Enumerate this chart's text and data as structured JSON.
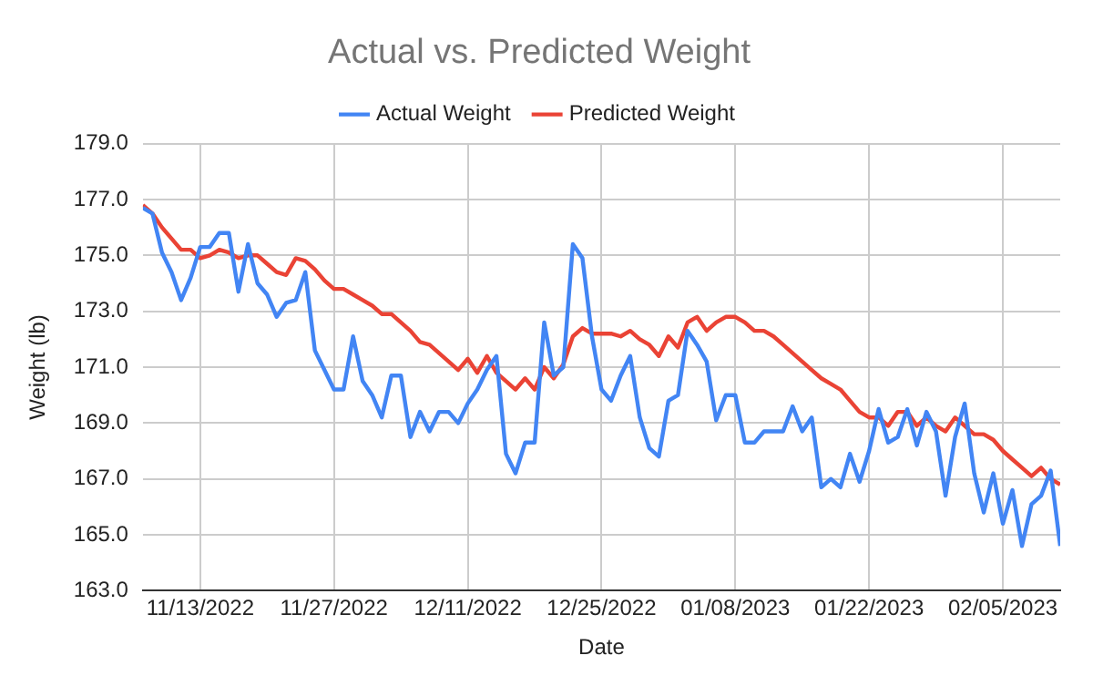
{
  "chart_data": {
    "type": "line",
    "title": "Actual vs. Predicted Weight",
    "xlabel": "Date",
    "ylabel": "Weight (lb)",
    "x": [
      "2022-11-07",
      "2022-11-08",
      "2022-11-09",
      "2022-11-10",
      "2022-11-11",
      "2022-11-12",
      "2022-11-13",
      "2022-11-14",
      "2022-11-15",
      "2022-11-16",
      "2022-11-17",
      "2022-11-18",
      "2022-11-19",
      "2022-11-20",
      "2022-11-21",
      "2022-11-22",
      "2022-11-23",
      "2022-11-24",
      "2022-11-25",
      "2022-11-26",
      "2022-11-27",
      "2022-11-28",
      "2022-11-29",
      "2022-11-30",
      "2022-12-01",
      "2022-12-02",
      "2022-12-03",
      "2022-12-04",
      "2022-12-05",
      "2022-12-06",
      "2022-12-07",
      "2022-12-08",
      "2022-12-09",
      "2022-12-10",
      "2022-12-11",
      "2022-12-12",
      "2022-12-13",
      "2022-12-14",
      "2022-12-15",
      "2022-12-16",
      "2022-12-17",
      "2022-12-18",
      "2022-12-19",
      "2022-12-20",
      "2022-12-21",
      "2022-12-22",
      "2022-12-23",
      "2022-12-24",
      "2022-12-25",
      "2022-12-26",
      "2022-12-27",
      "2022-12-28",
      "2022-12-29",
      "2022-12-30",
      "2022-12-31",
      "2023-01-01",
      "2023-01-02",
      "2023-01-03",
      "2023-01-04",
      "2023-01-05",
      "2023-01-06",
      "2023-01-07",
      "2023-01-08",
      "2023-01-09",
      "2023-01-10",
      "2023-01-11",
      "2023-01-12",
      "2023-01-13",
      "2023-01-14",
      "2023-01-15",
      "2023-01-16",
      "2023-01-17",
      "2023-01-18",
      "2023-01-19",
      "2023-01-20",
      "2023-01-21",
      "2023-01-22",
      "2023-01-23",
      "2023-01-24",
      "2023-01-25",
      "2023-01-26",
      "2023-01-27",
      "2023-01-28",
      "2023-01-29",
      "2023-01-30",
      "2023-01-31",
      "2023-02-01",
      "2023-02-02",
      "2023-02-03",
      "2023-02-04",
      "2023-02-05",
      "2023-02-06",
      "2023-02-07",
      "2023-02-08",
      "2023-02-09",
      "2023-02-10",
      "2023-02-11"
    ],
    "series": [
      {
        "name": "Actual Weight",
        "color": "#4285f4",
        "values": [
          176.7,
          176.5,
          175.1,
          174.4,
          173.4,
          174.2,
          175.3,
          175.3,
          175.8,
          175.8,
          173.7,
          175.4,
          174.0,
          173.6,
          172.8,
          173.3,
          173.4,
          174.4,
          171.6,
          170.9,
          170.2,
          170.2,
          172.1,
          170.5,
          170.0,
          169.2,
          170.7,
          170.7,
          168.5,
          169.4,
          168.7,
          169.4,
          169.4,
          169.0,
          169.7,
          170.2,
          170.9,
          171.4,
          167.9,
          167.2,
          168.3,
          168.3,
          172.6,
          170.7,
          171.0,
          175.4,
          174.9,
          172.1,
          170.2,
          169.8,
          170.7,
          171.4,
          169.2,
          168.1,
          167.8,
          169.8,
          170.0,
          172.3,
          171.8,
          171.2,
          169.1,
          170.0,
          170.0,
          168.3,
          168.3,
          168.7,
          168.7,
          168.7,
          169.6,
          168.7,
          169.2,
          166.7,
          167.0,
          166.7,
          167.9,
          166.9,
          168.0,
          169.5,
          168.3,
          168.5,
          169.5,
          168.2,
          169.4,
          168.7,
          166.4,
          168.5,
          169.7,
          167.2,
          165.8,
          167.2,
          165.4,
          166.6,
          164.6,
          166.1,
          166.4,
          167.3,
          164.6
        ]
      },
      {
        "name": "Predicted Weight",
        "color": "#ea4335",
        "values": [
          176.8,
          176.5,
          176.0,
          175.6,
          175.2,
          175.2,
          174.9,
          175.0,
          175.2,
          175.1,
          174.9,
          175.0,
          175.0,
          174.7,
          174.4,
          174.3,
          174.9,
          174.8,
          174.5,
          174.1,
          173.8,
          173.8,
          173.6,
          173.4,
          173.2,
          172.9,
          172.9,
          172.6,
          172.3,
          171.9,
          171.8,
          171.5,
          171.2,
          170.9,
          171.3,
          170.8,
          171.4,
          170.8,
          170.5,
          170.2,
          170.6,
          170.2,
          171.0,
          170.6,
          171.1,
          172.1,
          172.4,
          172.2,
          172.2,
          172.2,
          172.1,
          172.3,
          172.0,
          171.8,
          171.4,
          172.1,
          171.7,
          172.6,
          172.8,
          172.3,
          172.6,
          172.8,
          172.8,
          172.6,
          172.3,
          172.3,
          172.1,
          171.8,
          171.5,
          171.2,
          170.9,
          170.6,
          170.4,
          170.2,
          169.8,
          169.4,
          169.2,
          169.2,
          168.9,
          169.4,
          169.4,
          168.9,
          169.2,
          168.9,
          168.7,
          169.2,
          168.9,
          168.6,
          168.6,
          168.4,
          168.0,
          167.7,
          167.4,
          167.1,
          167.4,
          167.0,
          166.8
        ]
      }
    ],
    "xlim": [
      "2022-11-07",
      "2023-02-11"
    ],
    "xticks": [
      {
        "value": "2022-11-13",
        "label": "11/13/2022"
      },
      {
        "value": "2022-11-27",
        "label": "11/27/2022"
      },
      {
        "value": "2022-12-11",
        "label": "12/11/2022"
      },
      {
        "value": "2022-12-25",
        "label": "12/25/2022"
      },
      {
        "value": "2023-01-08",
        "label": "01/08/2023"
      },
      {
        "value": "2023-01-22",
        "label": "01/22/2023"
      },
      {
        "value": "2023-02-05",
        "label": "02/05/2023"
      }
    ],
    "ylim": [
      163,
      179
    ],
    "yticks": [
      {
        "value": 163,
        "label": "163.0"
      },
      {
        "value": 165,
        "label": "165.0"
      },
      {
        "value": 167,
        "label": "167.0"
      },
      {
        "value": 169,
        "label": "169.0"
      },
      {
        "value": 171,
        "label": "171.0"
      },
      {
        "value": 173,
        "label": "173.0"
      },
      {
        "value": 175,
        "label": "175.0"
      },
      {
        "value": 177,
        "label": "177.0"
      },
      {
        "value": 179,
        "label": "179.0"
      }
    ],
    "grid": true,
    "legend": "top",
    "marker": "none",
    "line_style": "solid"
  }
}
